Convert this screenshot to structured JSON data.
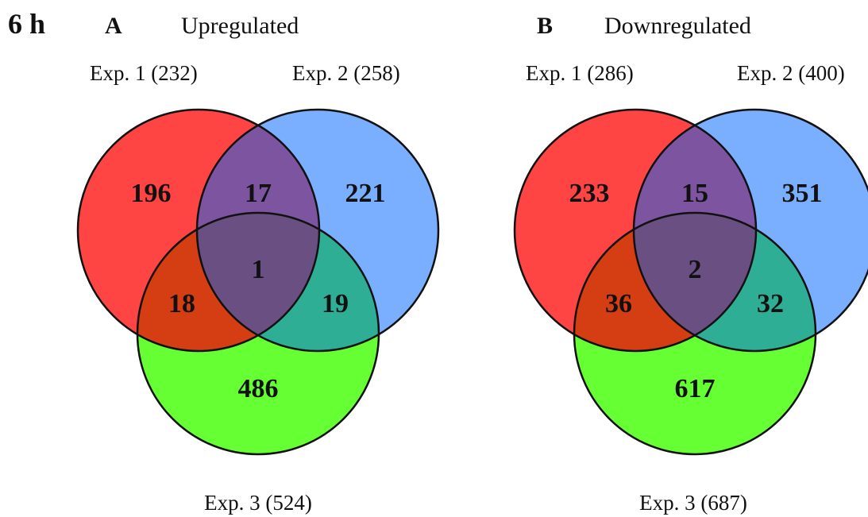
{
  "timepoint": "6 h",
  "panels": [
    {
      "letter": "A",
      "title": "Upregulated",
      "sets": [
        {
          "label": "Exp. 1 (232)",
          "color": "#ff4444"
        },
        {
          "label": "Exp. 2 (258)",
          "color": "#7aaeff"
        },
        {
          "label": "Exp. 3 (524)",
          "color": "#66ff33"
        }
      ],
      "regions": {
        "only1": "196",
        "only2": "221",
        "only3": "486",
        "ab": "17",
        "ac": "18",
        "bc": "19",
        "abc": "1"
      }
    },
    {
      "letter": "B",
      "title": "Downregulated",
      "sets": [
        {
          "label": "Exp. 1 (286)",
          "color": "#ff4444"
        },
        {
          "label": "Exp. 2 (400)",
          "color": "#7aaeff"
        },
        {
          "label": "Exp. 3 (687)",
          "color": "#66ff33"
        }
      ],
      "regions": {
        "only1": "233",
        "only2": "351",
        "only3": "617",
        "ab": "15",
        "ac": "36",
        "bc": "32",
        "abc": "2"
      }
    }
  ],
  "overlap_colors": {
    "ab": "#7d54a0",
    "ac": "#d53d12",
    "bc": "#2fae96",
    "abc": "#6a5082"
  }
}
